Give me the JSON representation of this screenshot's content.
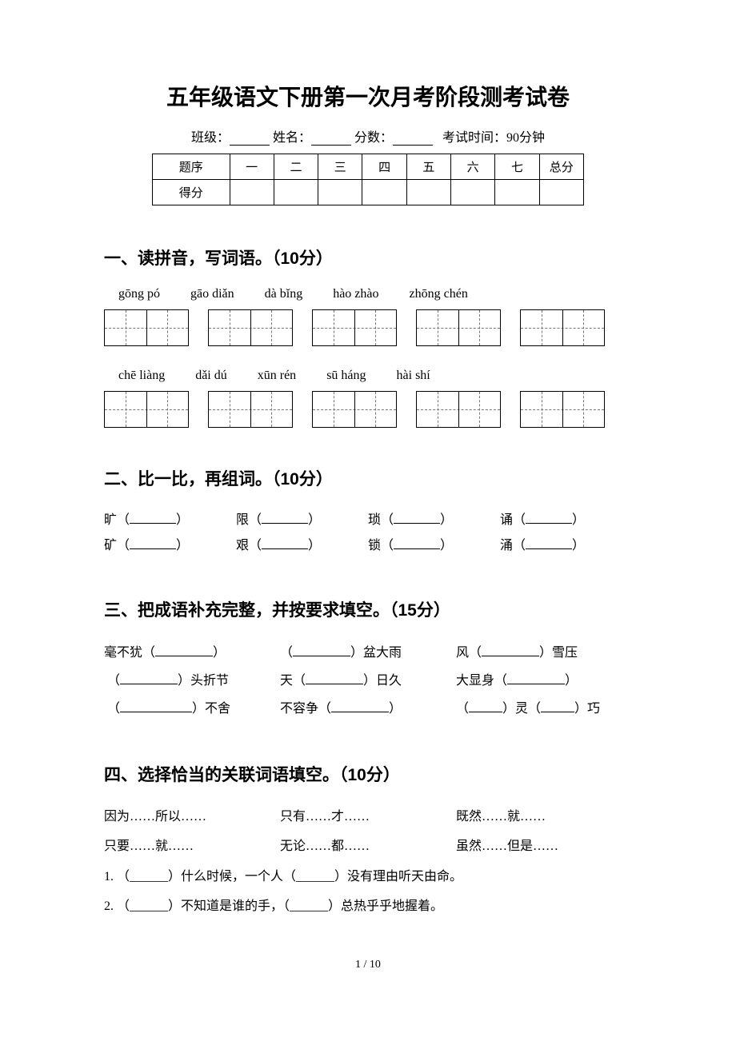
{
  "title": "五年级语文下册第一次月考阶段测考试卷",
  "info": {
    "class_label": "班级：",
    "name_label": "姓名：",
    "score_label": "分数：",
    "time_label": "考试时间：90分钟"
  },
  "score_table": {
    "header_label": "题序",
    "row_label": "得分",
    "cols": [
      "一",
      "二",
      "三",
      "四",
      "五",
      "六",
      "七",
      "总分"
    ]
  },
  "section1": {
    "title": "一、读拼音，写词语。（10分）",
    "pinyin_row1": [
      "gōng pó",
      "gāo diǎn",
      "dà bǐng",
      "hào zhào",
      "zhōng chén"
    ],
    "pinyin_row2": [
      "chē liàng",
      "dǎi dú",
      "xūn rén",
      "sū háng",
      "hài shí"
    ]
  },
  "section2": {
    "title": "二、比一比，再组词。（10分）",
    "pairs": [
      [
        "旷",
        "矿"
      ],
      [
        "限",
        "艰"
      ],
      [
        "琐",
        "锁"
      ],
      [
        "诵",
        "涌"
      ]
    ]
  },
  "section3": {
    "title": "三、把成语补充完整，并按要求填空。（15分）",
    "items": [
      [
        "毫不犹（",
        "）"
      ],
      [
        "（",
        "）盆大雨"
      ],
      [
        "风（",
        "）雪压"
      ],
      [
        "（",
        "）头折节"
      ],
      [
        "天（",
        "）日久"
      ],
      [
        "大显身（",
        "）"
      ],
      [
        "（",
        "）不舍"
      ],
      [
        "不容争（",
        "）"
      ],
      [
        "（",
        "）灵（",
        "）巧"
      ]
    ]
  },
  "section4": {
    "title": "四、选择恰当的关联词语填空。（10分）",
    "conjunctions": [
      "因为……所以……",
      "只有……才……",
      "既然……就……",
      "只要……就……",
      "无论……都……",
      "虽然……但是……"
    ],
    "questions": [
      "1. （______）什么时候，一个人（______）没有理由听天由命。",
      "2. （______）不知道是谁的手，（______）总热乎乎地握着。"
    ]
  },
  "page_num": "1 / 10"
}
